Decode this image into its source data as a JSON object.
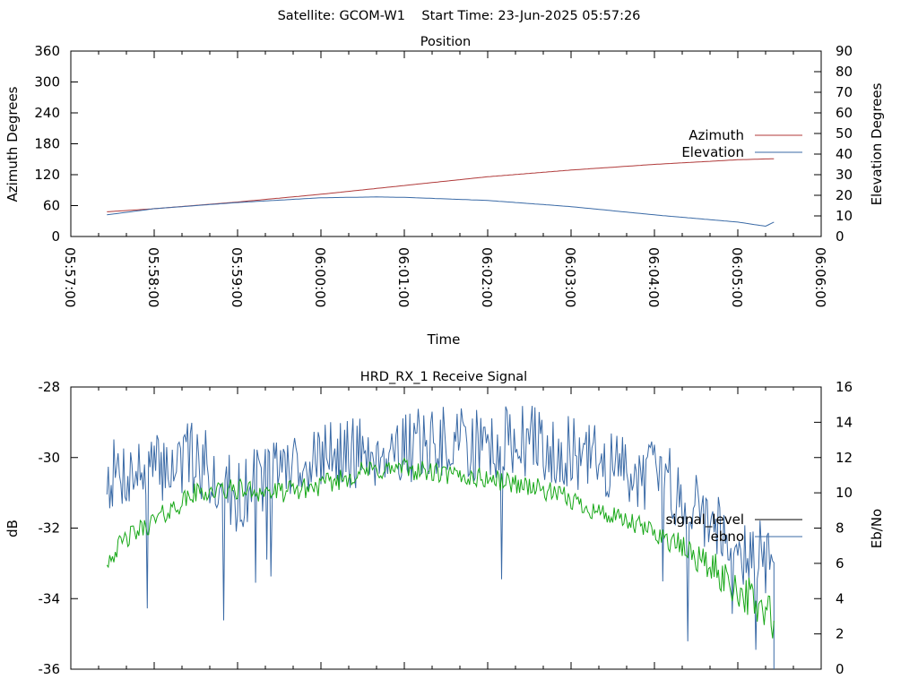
{
  "header": {
    "text": "Satellite: GCOM-W1    Start Time: 23-Jun-2025 05:57:26"
  },
  "colors": {
    "azimuth": "#b03a3a",
    "elevation": "#3a6aa6",
    "signal_level_legend": "#000000",
    "signal_level_trace": "#18a818",
    "ebno": "#3a6aa6"
  },
  "chart_data": [
    {
      "type": "line",
      "title": "Position",
      "xlabel": "Time",
      "ylabel": "Azimuth Degrees",
      "y2label": "Elevation Degrees",
      "xlim": [
        "05:57:00",
        "06:06:00"
      ],
      "ylim": [
        0,
        360
      ],
      "y2lim": [
        0,
        90
      ],
      "x_ticks": [
        "05:57:00",
        "05:58:00",
        "05:59:00",
        "06:00:00",
        "06:01:00",
        "06:02:00",
        "06:03:00",
        "06:04:00",
        "06:05:00",
        "06:06:00"
      ],
      "y_ticks": [
        "0",
        "60",
        "120",
        "180",
        "240",
        "300",
        "360"
      ],
      "y2_ticks": [
        "0",
        "10",
        "20",
        "30",
        "40",
        "50",
        "60",
        "70",
        "80",
        "90"
      ],
      "legend_position": "right",
      "series": [
        {
          "name": "Azimuth",
          "axis": "left",
          "x": [
            "05:57:26",
            "05:58:00",
            "05:59:00",
            "06:00:00",
            "06:01:00",
            "06:02:00",
            "06:03:00",
            "06:04:00",
            "06:05:00",
            "06:05:26"
          ],
          "values": [
            48,
            54,
            67,
            82,
            99,
            116,
            129,
            140,
            149,
            151
          ]
        },
        {
          "name": "Elevation",
          "axis": "right",
          "x": [
            "05:57:26",
            "05:58:00",
            "05:59:00",
            "06:00:00",
            "06:00:40",
            "06:01:00",
            "06:02:00",
            "06:03:00",
            "06:04:00",
            "06:05:00",
            "06:05:20",
            "06:05:26"
          ],
          "values": [
            10.5,
            13.5,
            16.5,
            18.8,
            19.2,
            19.0,
            17.5,
            14.5,
            10.5,
            7.0,
            5.0,
            7.0
          ]
        }
      ]
    },
    {
      "type": "line",
      "title": "HRD_RX_1 Receive Signal",
      "xlabel": "",
      "ylabel": "dB",
      "y2label": "Eb/No",
      "xlim": [
        "05:57:00",
        "06:06:00"
      ],
      "ylim": [
        -36,
        -28
      ],
      "y2lim": [
        0,
        16
      ],
      "y_ticks": [
        "-36",
        "-34",
        "-32",
        "-30",
        "-28"
      ],
      "y2_ticks": [
        "0",
        "2",
        "4",
        "6",
        "8",
        "10",
        "12",
        "14",
        "16"
      ],
      "legend_position": "right",
      "series": [
        {
          "name": "signal_level",
          "axis": "left",
          "x": [
            "05:57:26",
            "05:57:40",
            "05:58:00",
            "05:58:30",
            "05:59:00",
            "05:59:30",
            "06:00:00",
            "06:00:30",
            "06:01:00",
            "06:01:30",
            "06:02:00",
            "06:02:30",
            "06:03:00",
            "06:03:30",
            "06:04:00",
            "06:04:30",
            "06:05:00",
            "06:05:26"
          ],
          "values": [
            -32.9,
            -32.3,
            -31.8,
            -31.0,
            -30.9,
            -31.0,
            -30.8,
            -30.4,
            -30.3,
            -30.5,
            -30.6,
            -30.8,
            -31.2,
            -31.7,
            -32.1,
            -32.8,
            -33.7,
            -34.6
          ]
        },
        {
          "name": "ebno",
          "axis": "right",
          "x": [
            "05:57:26",
            "05:58:00",
            "05:58:30",
            "05:59:00",
            "05:59:30",
            "06:00:00",
            "06:00:30",
            "06:01:00",
            "06:01:30",
            "06:02:00",
            "06:02:30",
            "06:03:00",
            "06:03:30",
            "06:04:00",
            "06:04:30",
            "06:05:00",
            "06:05:26"
          ],
          "values": [
            11.0,
            11.3,
            12.0,
            9.8,
            11.5,
            12.0,
            12.3,
            12.6,
            12.8,
            12.7,
            13.0,
            12.2,
            11.5,
            11.0,
            9.5,
            7.0,
            6.0
          ]
        }
      ]
    }
  ]
}
